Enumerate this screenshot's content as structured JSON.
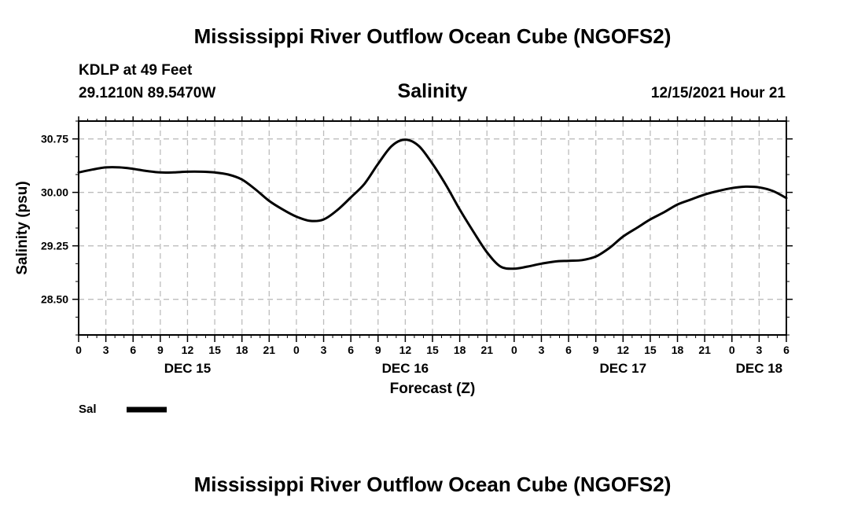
{
  "header": {
    "title": "Mississippi River Outflow Ocean Cube (NGOFS2)",
    "station": "KDLP at 49 Feet",
    "location": "29.1210N  89.5470W",
    "timestamp": "12/15/2021 Hour 21"
  },
  "footer": {
    "title": "Mississippi River Outflow Ocean Cube (NGOFS2)"
  },
  "legend": {
    "label": "Sal",
    "color": "#000000"
  },
  "chart_data": {
    "type": "line",
    "title": "Salinity",
    "xlabel": "Forecast (Z)",
    "ylabel": "Salinity (psu)",
    "xlim": [
      0,
      78
    ],
    "ylim": [
      28.0,
      31.0
    ],
    "x_tick_values": [
      0,
      3,
      6,
      9,
      12,
      15,
      18,
      21,
      24,
      27,
      30,
      33,
      36,
      39,
      42,
      45,
      48,
      51,
      54,
      57,
      60,
      63,
      66,
      69,
      72,
      75,
      78
    ],
    "x_tick_labels": [
      "0",
      "3",
      "6",
      "9",
      "12",
      "15",
      "18",
      "21",
      "0",
      "3",
      "6",
      "9",
      "12",
      "15",
      "18",
      "21",
      "0",
      "3",
      "6",
      "9",
      "12",
      "15",
      "18",
      "21",
      "0",
      "3",
      "6"
    ],
    "y_tick_values": [
      28.5,
      29.25,
      30.0,
      30.75
    ],
    "y_tick_labels": [
      "28.50",
      "29.25",
      "30.00",
      "30.75"
    ],
    "date_labels": [
      {
        "text": "DEC 15",
        "x": 12
      },
      {
        "text": "DEC 16",
        "x": 36
      },
      {
        "text": "DEC 17",
        "x": 60
      },
      {
        "text": "DEC 18",
        "x": 75
      }
    ],
    "grid": true,
    "series": [
      {
        "name": "Sal",
        "color": "#000000",
        "x": [
          0,
          1.5,
          3,
          4.5,
          6,
          7.5,
          9,
          10.5,
          12,
          13.5,
          15,
          16.5,
          18,
          19.5,
          21,
          22.5,
          24,
          25.5,
          27,
          28.5,
          30,
          31.5,
          33,
          34.5,
          36,
          37.5,
          39,
          40.5,
          42,
          43.5,
          45,
          46.5,
          48,
          49.5,
          51,
          52.5,
          54,
          55.5,
          57,
          58.5,
          60,
          61.5,
          63,
          64.5,
          66,
          67.5,
          69,
          70.5,
          72,
          73.5,
          75,
          76.5,
          78
        ],
        "values": [
          30.28,
          30.32,
          30.35,
          30.35,
          30.33,
          30.3,
          30.28,
          30.28,
          30.29,
          30.29,
          30.28,
          30.25,
          30.18,
          30.04,
          29.88,
          29.76,
          29.66,
          29.6,
          29.62,
          29.75,
          29.93,
          30.12,
          30.4,
          30.65,
          30.74,
          30.65,
          30.4,
          30.1,
          29.76,
          29.45,
          29.16,
          28.96,
          28.93,
          28.96,
          29.0,
          29.03,
          29.04,
          29.05,
          29.1,
          29.22,
          29.38,
          29.5,
          29.62,
          29.72,
          29.83,
          29.9,
          29.97,
          30.02,
          30.06,
          30.08,
          30.07,
          30.02,
          29.92
        ]
      }
    ]
  }
}
